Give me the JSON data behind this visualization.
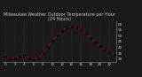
{
  "title": "Milwaukee Weather Outdoor Temperature per Hour (24 Hours)",
  "hours": [
    0,
    1,
    2,
    3,
    4,
    5,
    6,
    7,
    8,
    9,
    10,
    11,
    12,
    13,
    14,
    15,
    16,
    17,
    18,
    19,
    20,
    21,
    22,
    23
  ],
  "temps": [
    32,
    31,
    31,
    32,
    33,
    31,
    30,
    31,
    35,
    40,
    46,
    50,
    54,
    57,
    58,
    57,
    55,
    52,
    48,
    44,
    41,
    38,
    36,
    34
  ],
  "line_color": "#ff0000",
  "marker_color": "#000000",
  "plot_bg": "#1a1a1a",
  "fig_bg": "#1a1a1a",
  "text_color": "#cccccc",
  "grid_color": "#555555",
  "ylim": [
    28,
    62
  ],
  "yticks": [
    30,
    35,
    40,
    45,
    50,
    55,
    60
  ],
  "title_fontsize": 3.5,
  "tick_fontsize": 3.0,
  "spine_color": "#888888"
}
